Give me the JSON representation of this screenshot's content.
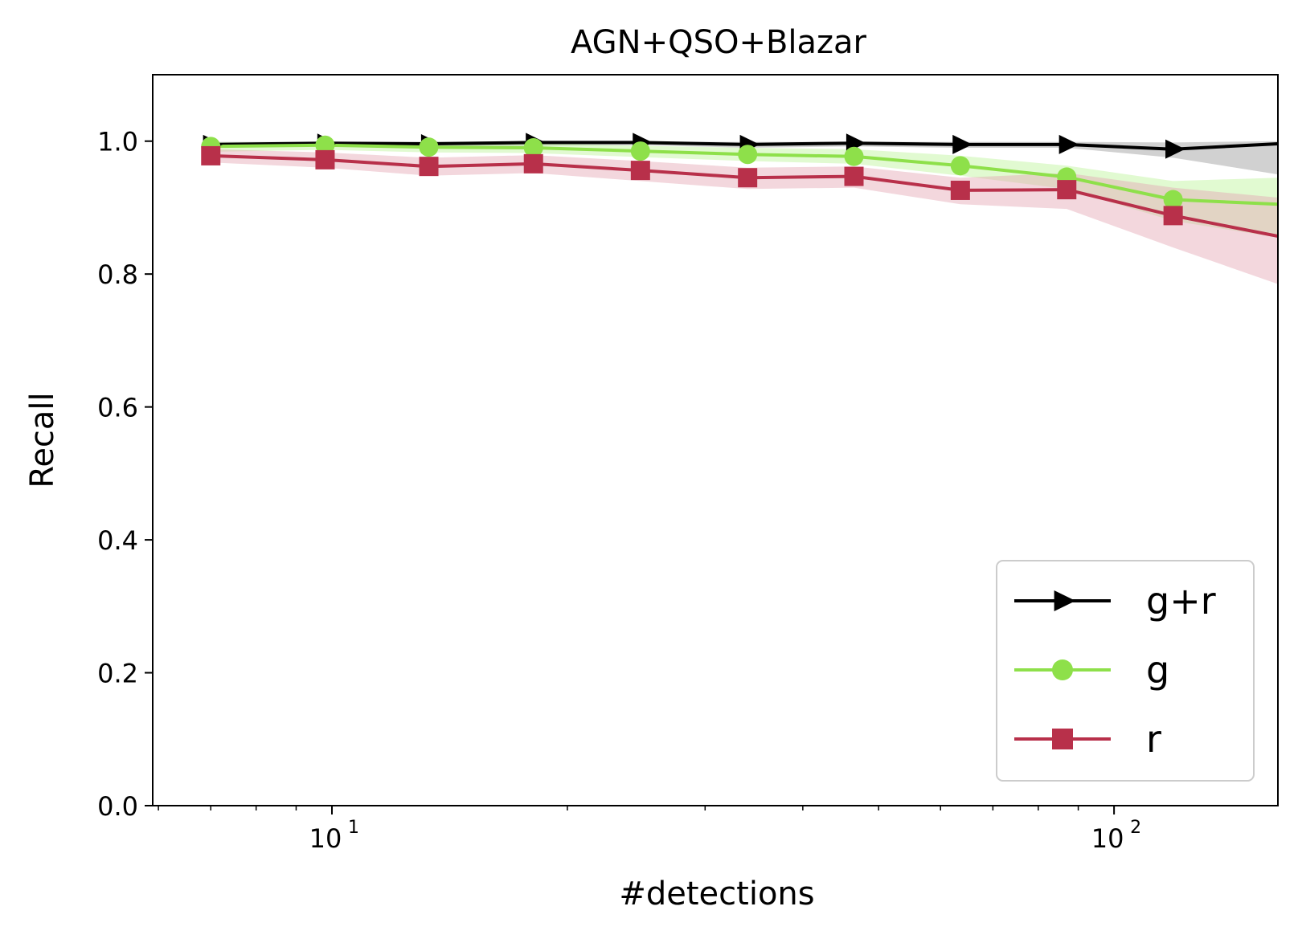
{
  "chart_data": {
    "type": "line",
    "title": "AGN+QSO+Blazar",
    "xlabel": "#detections",
    "ylabel": "Recall",
    "xscale": "log",
    "xlim": [
      5.9,
      162
    ],
    "ylim": [
      0,
      1.1
    ],
    "y_ticks": [
      {
        "value": 0.0,
        "label": "0.0"
      },
      {
        "value": 0.2,
        "label": "0.2"
      },
      {
        "value": 0.4,
        "label": "0.4"
      },
      {
        "value": 0.6,
        "label": "0.6"
      },
      {
        "value": 0.8,
        "label": "0.8"
      },
      {
        "value": 1.0,
        "label": "1.0"
      }
    ],
    "x_major_ticks": [
      {
        "value": 10,
        "base": "10",
        "exp": "1"
      },
      {
        "value": 100,
        "base": "10",
        "exp": "2"
      }
    ],
    "x_minor_ticks": [
      6,
      7,
      8,
      9,
      20,
      30,
      40,
      50,
      60,
      70,
      80,
      90
    ],
    "grid": false,
    "legend": "lower-right",
    "series": [
      {
        "name": "g+r",
        "color": "#000000",
        "band_color": "#999999",
        "marker": "triangle-right",
        "x": [
          7,
          9.8,
          13.3,
          18.1,
          24.8,
          34,
          46.5,
          63.6,
          87,
          119,
          162
        ],
        "y": [
          0.995,
          0.997,
          0.996,
          0.998,
          0.998,
          0.995,
          0.997,
          0.995,
          0.995,
          0.988,
          0.996
        ],
        "lower": [
          0.99,
          0.992,
          0.991,
          0.993,
          0.994,
          0.99,
          0.992,
          0.99,
          0.99,
          0.975,
          0.95
        ],
        "upper": [
          0.999,
          0.999,
          0.999,
          0.999,
          0.999,
          0.999,
          0.999,
          0.999,
          0.999,
          0.998,
          1.0
        ]
      },
      {
        "name": "g",
        "color": "#8ee04a",
        "band_color": "#bdf59a",
        "marker": "circle",
        "x": [
          7,
          9.8,
          13.3,
          18.1,
          24.8,
          34,
          46.5,
          63.6,
          87,
          119,
          162
        ],
        "y": [
          0.992,
          0.994,
          0.991,
          0.99,
          0.985,
          0.98,
          0.977,
          0.963,
          0.946,
          0.912,
          0.905
        ],
        "lower": [
          0.984,
          0.987,
          0.983,
          0.982,
          0.976,
          0.97,
          0.966,
          0.948,
          0.928,
          0.88,
          0.855
        ],
        "upper": [
          0.998,
          0.999,
          0.997,
          0.997,
          0.993,
          0.99,
          0.988,
          0.978,
          0.963,
          0.94,
          0.945
        ]
      },
      {
        "name": "r",
        "color": "#b8304a",
        "band_color": "#e4a6b4",
        "marker": "square",
        "x": [
          7,
          9.8,
          13.3,
          18.1,
          24.8,
          34,
          46.5,
          63.6,
          87,
          119,
          162
        ],
        "y": [
          0.978,
          0.972,
          0.962,
          0.966,
          0.956,
          0.945,
          0.947,
          0.926,
          0.927,
          0.888,
          0.857
        ],
        "lower": [
          0.968,
          0.96,
          0.948,
          0.952,
          0.94,
          0.928,
          0.93,
          0.905,
          0.898,
          0.84,
          0.785
        ],
        "upper": [
          0.988,
          0.983,
          0.975,
          0.979,
          0.97,
          0.96,
          0.962,
          0.945,
          0.952,
          0.93,
          0.915
        ]
      }
    ]
  }
}
